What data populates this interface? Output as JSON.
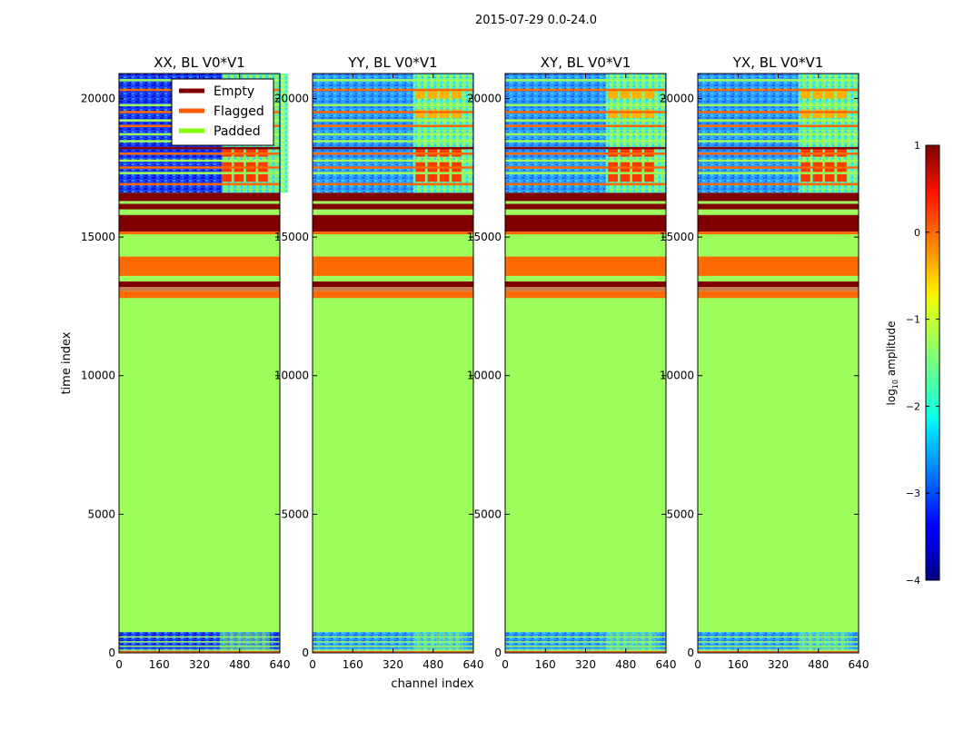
{
  "chart_data": {
    "type": "heatmap",
    "suptitle": "2015-07-29 0.0-24.0",
    "xlabel": "channel index",
    "ylabel": "time index",
    "xlim": [
      0,
      640
    ],
    "ylim": [
      0,
      20900
    ],
    "xticks": [
      0,
      160,
      320,
      480,
      640
    ],
    "yticks": [
      0,
      5000,
      10000,
      15000,
      20000
    ],
    "colorbar": {
      "label": "log10 amplitude",
      "label_base": "log",
      "label_sub": "10",
      "label_rest": " amplitude",
      "range": [
        -4,
        1
      ],
      "ticks": [
        1,
        0,
        -1,
        -2,
        -3,
        -4
      ]
    },
    "legend": {
      "location": "top-right of first panel",
      "entries": [
        {
          "label": "Empty",
          "color": "#800000"
        },
        {
          "label": "Flagged",
          "color": "#ff5a00"
        },
        {
          "label": "Padded",
          "color": "#7fff00"
        }
      ]
    },
    "panels": [
      {
        "title": "XX, BL V0*V1",
        "pol": "XX"
      },
      {
        "title": "YY, BL V0*V1",
        "pol": "YY"
      },
      {
        "title": "XY, BL V0*V1",
        "pol": "XY"
      },
      {
        "title": "YX, BL V0*V1",
        "pol": "YX"
      }
    ],
    "regions_description": "time index ranges and their state",
    "regions": [
      {
        "t0": 0,
        "t1": 750,
        "state": "data"
      },
      {
        "t0": 750,
        "t1": 12800,
        "state": "padded"
      },
      {
        "t0": 12800,
        "t1": 13050,
        "state": "flagged"
      },
      {
        "t0": 13050,
        "t1": 13200,
        "state": "data-thin"
      },
      {
        "t0": 13200,
        "t1": 13400,
        "state": "empty"
      },
      {
        "t0": 13400,
        "t1": 13600,
        "state": "padded"
      },
      {
        "t0": 13600,
        "t1": 14300,
        "state": "flagged"
      },
      {
        "t0": 14300,
        "t1": 15100,
        "state": "padded"
      },
      {
        "t0": 15100,
        "t1": 15200,
        "state": "flagged"
      },
      {
        "t0": 15200,
        "t1": 15800,
        "state": "empty"
      },
      {
        "t0": 15800,
        "t1": 16000,
        "state": "padded"
      },
      {
        "t0": 16000,
        "t1": 16200,
        "state": "empty"
      },
      {
        "t0": 16200,
        "t1": 16300,
        "state": "padded"
      },
      {
        "t0": 16300,
        "t1": 16600,
        "state": "empty"
      },
      {
        "t0": 16600,
        "t1": 20900,
        "state": "data"
      }
    ]
  },
  "colors": {
    "empty": "#800000",
    "flagged": "#ff6a00",
    "padded": "#9cff5c",
    "background": "#ffffff",
    "axis": "#000000"
  }
}
